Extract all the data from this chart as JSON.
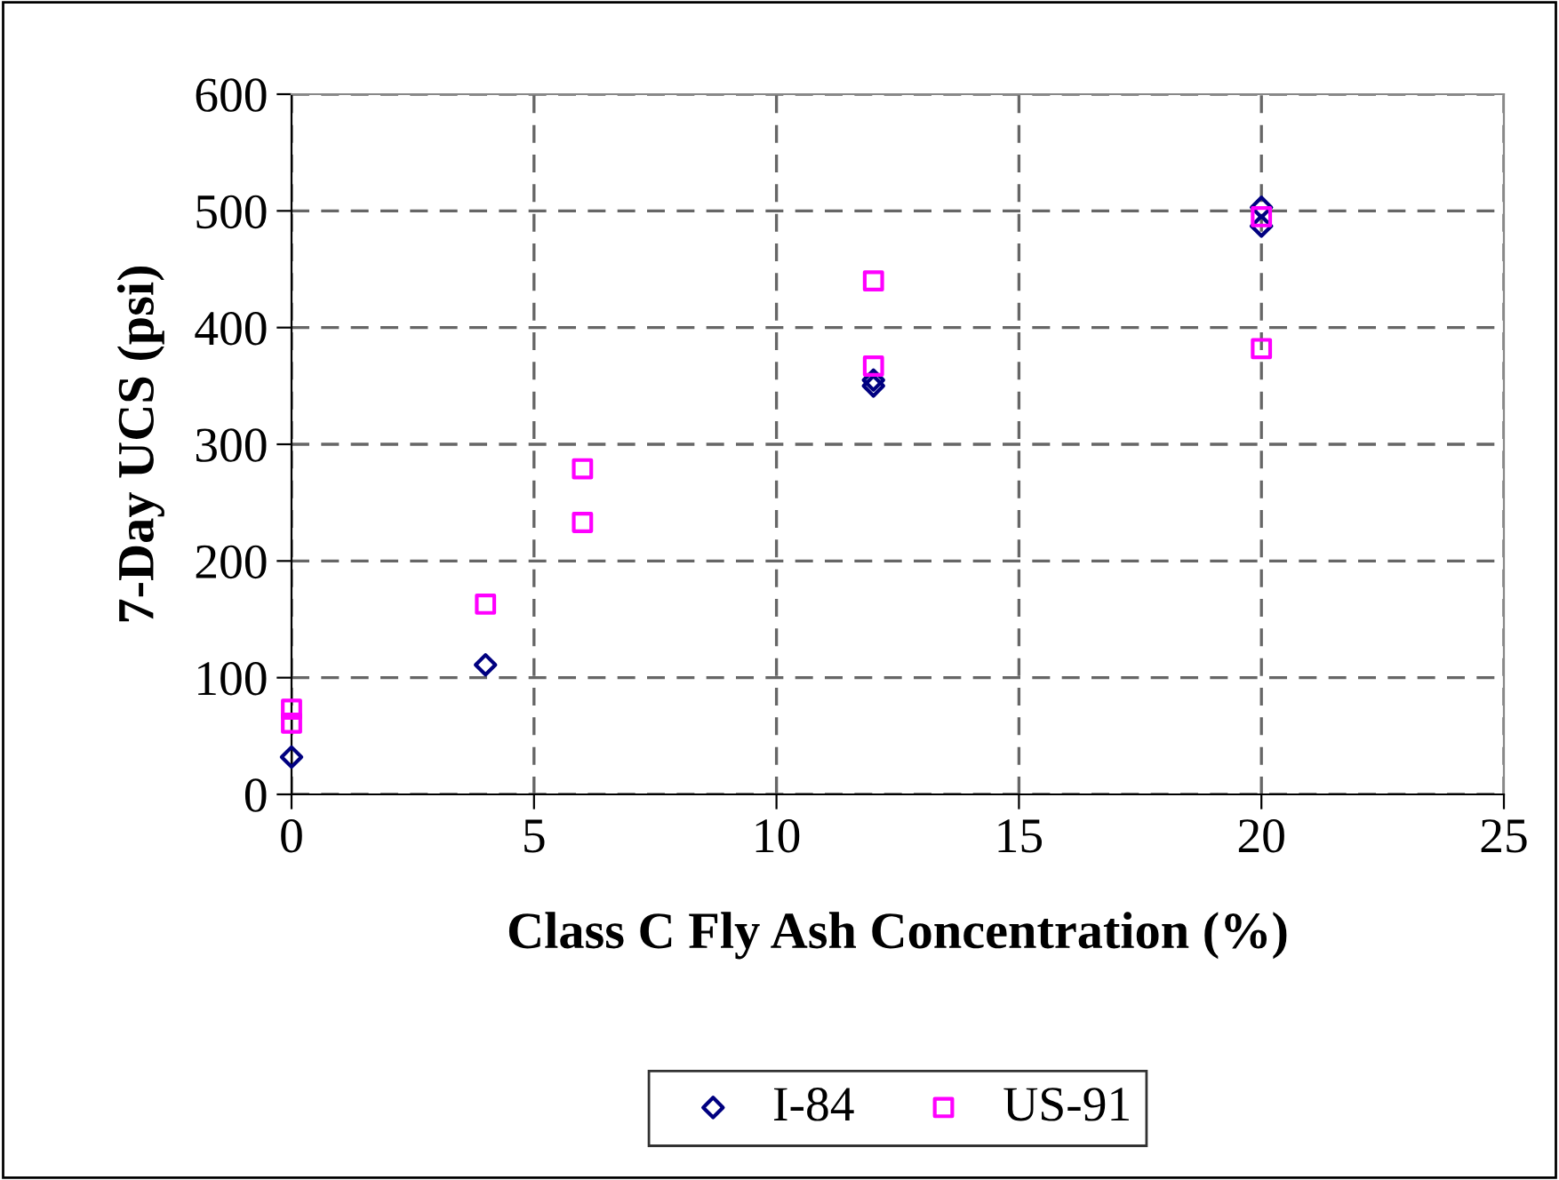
{
  "chart_data": {
    "type": "scatter",
    "xlabel": "Class C Fly Ash Concentration (%)",
    "ylabel": "7-Day UCS (psi)",
    "xlim": [
      0,
      25
    ],
    "xticks": [
      0,
      5,
      10,
      15,
      20,
      25
    ],
    "ylim": [
      0,
      600
    ],
    "yticks": [
      0,
      100,
      200,
      300,
      400,
      500,
      600
    ],
    "grid": true,
    "legend": "bottom",
    "series": [
      {
        "name": "I-84",
        "color": "#000080",
        "marker": "diamond",
        "x": [
          0,
          4,
          12,
          12,
          20,
          20
        ],
        "values": [
          32,
          111,
          350,
          355,
          487,
          503
        ]
      },
      {
        "name": "US-91",
        "color": "#ff00ff",
        "marker": "square",
        "x": [
          0,
          0,
          4,
          6,
          6,
          12,
          12,
          20,
          20
        ],
        "values": [
          61,
          73,
          163,
          233,
          279,
          367,
          440,
          382,
          495
        ]
      }
    ]
  }
}
